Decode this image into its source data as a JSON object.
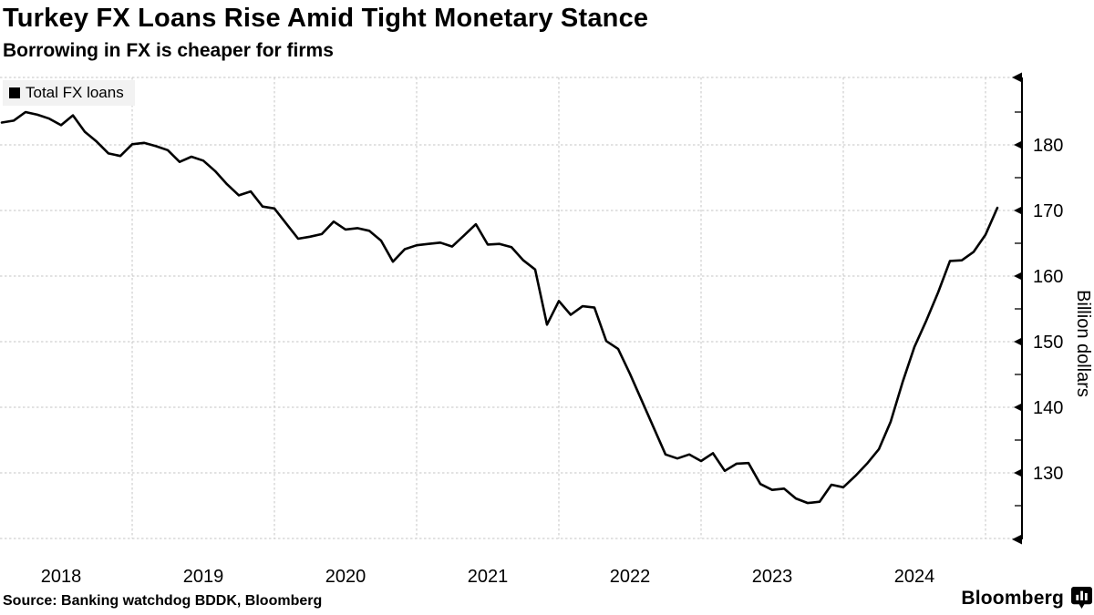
{
  "header": {
    "title": "Turkey FX Loans Rise Amid Tight Monetary Stance",
    "subtitle": "Borrowing in FX is cheaper for firms"
  },
  "legend": {
    "label": "Total FX loans",
    "swatch_color": "#000000"
  },
  "footer": {
    "source": "Source: Banking watchdog BDDK, Bloomberg",
    "brand": "Bloomberg",
    "brand_icon": "bloomberg-bars-bubble-icon"
  },
  "colors": {
    "line": "#000000",
    "grid": "#c6c6c6",
    "axis": "#000000",
    "legend_bg": "#f2f2f2",
    "text": "#000000",
    "background": "#ffffff"
  },
  "chart_data": {
    "type": "line",
    "title": "Turkey FX Loans Rise Amid Tight Monetary Stance",
    "subtitle": "Borrowing in FX is cheaper for firms",
    "ylabel": "Billion dollars",
    "xlabel": "",
    "grid": "dashed",
    "legend_position": "top-left",
    "y_axis_side": "right",
    "ylim": [
      120,
      190
    ],
    "y_major_ticks": [
      130,
      140,
      150,
      160,
      170,
      180
    ],
    "y_minor_ticks": [
      125,
      135,
      145,
      155,
      165,
      175,
      185
    ],
    "x_year_labels": [
      "2018",
      "2019",
      "2020",
      "2021",
      "2022",
      "2023",
      "2024"
    ],
    "series": [
      {
        "name": "Total FX loans",
        "color": "#000000",
        "months": [
          "2018-02",
          "2018-03",
          "2018-04",
          "2018-05",
          "2018-06",
          "2018-07",
          "2018-08",
          "2018-09",
          "2018-10",
          "2018-11",
          "2018-12",
          "2019-01",
          "2019-02",
          "2019-03",
          "2019-04",
          "2019-05",
          "2019-06",
          "2019-07",
          "2019-08",
          "2019-09",
          "2019-10",
          "2019-11",
          "2019-12",
          "2020-01",
          "2020-02",
          "2020-03",
          "2020-04",
          "2020-05",
          "2020-06",
          "2020-07",
          "2020-08",
          "2020-09",
          "2020-10",
          "2020-11",
          "2020-12",
          "2021-01",
          "2021-02",
          "2021-03",
          "2021-04",
          "2021-05",
          "2021-06",
          "2021-07",
          "2021-08",
          "2021-09",
          "2021-10",
          "2021-11",
          "2021-12",
          "2022-01",
          "2022-02",
          "2022-03",
          "2022-04",
          "2022-05",
          "2022-06",
          "2022-07",
          "2022-08",
          "2022-09",
          "2022-10",
          "2022-11",
          "2022-12",
          "2023-01",
          "2023-02",
          "2023-03",
          "2023-04",
          "2023-05",
          "2023-06",
          "2023-07",
          "2023-08",
          "2023-09",
          "2023-10",
          "2023-11",
          "2023-12",
          "2024-01",
          "2024-02",
          "2024-03",
          "2024-04",
          "2024-05",
          "2024-06",
          "2024-07",
          "2024-08",
          "2024-09",
          "2024-10",
          "2024-11",
          "2024-12",
          "2025-01",
          "2025-02"
        ],
        "values": [
          183.4,
          183.7,
          185.0,
          184.6,
          184.0,
          183.0,
          184.5,
          182.0,
          180.5,
          178.7,
          178.3,
          180.1,
          180.3,
          179.8,
          179.2,
          177.4,
          178.2,
          177.6,
          176.0,
          174.0,
          172.3,
          172.9,
          170.6,
          170.3,
          168.0,
          165.7,
          166.0,
          166.4,
          168.3,
          167.1,
          167.3,
          166.9,
          165.4,
          162.2,
          164.1,
          164.7,
          164.9,
          165.1,
          164.5,
          166.2,
          167.9,
          164.8,
          164.9,
          164.4,
          162.4,
          161.0,
          152.6,
          156.2,
          154.1,
          155.4,
          155.2,
          150.1,
          148.9,
          145.1,
          141.0,
          136.9,
          132.8,
          132.2,
          132.8,
          131.8,
          133.0,
          130.3,
          131.4,
          131.5,
          128.3,
          127.4,
          127.6,
          126.1,
          125.4,
          125.6,
          128.2,
          127.8,
          129.5,
          131.4,
          133.6,
          137.8,
          143.8,
          149.2,
          153.2,
          157.5,
          162.3,
          162.4,
          163.7,
          166.3,
          170.4
        ]
      }
    ]
  }
}
